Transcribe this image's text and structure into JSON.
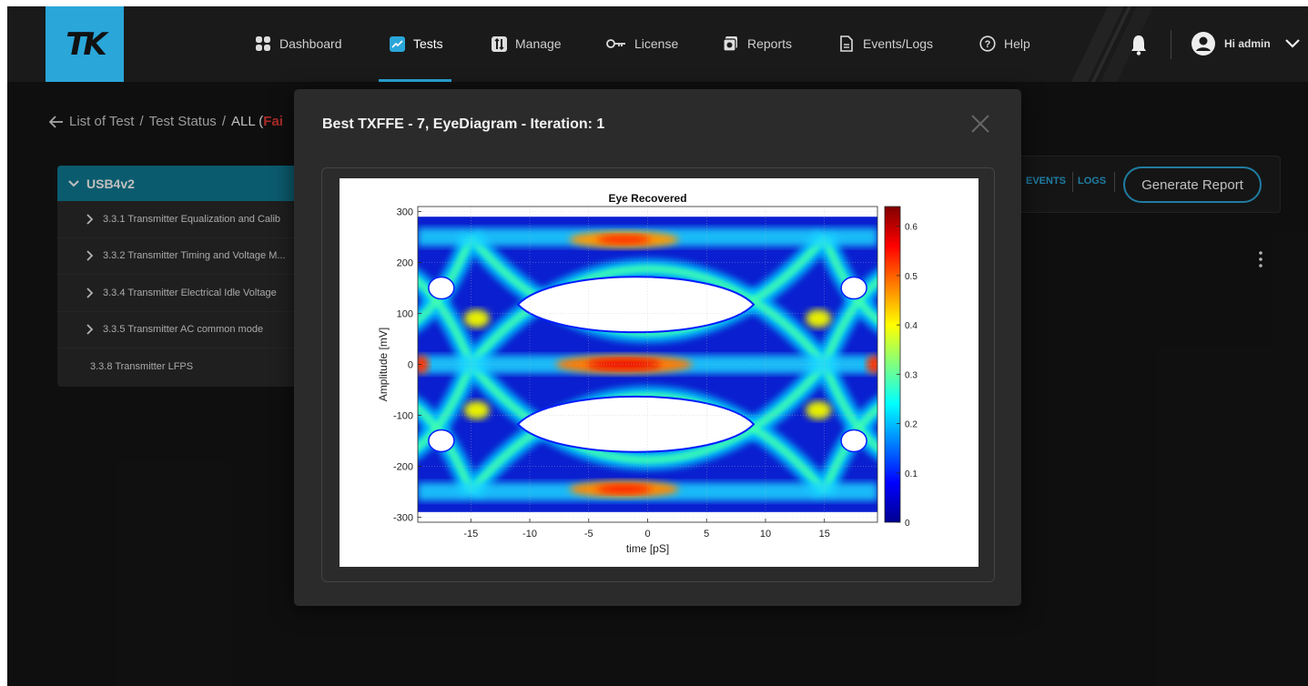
{
  "nav": {
    "logo_text": "TK",
    "items": [
      {
        "label": "Dashboard",
        "icon": "grid-icon"
      },
      {
        "label": "Tests",
        "icon": "chart-icon"
      },
      {
        "label": "Manage",
        "icon": "manage-icon"
      },
      {
        "label": "License",
        "icon": "key-icon"
      },
      {
        "label": "Reports",
        "icon": "reports-icon"
      },
      {
        "label": "Events/Logs",
        "icon": "document-icon"
      },
      {
        "label": "Help",
        "icon": "help-icon"
      }
    ],
    "active": "Tests",
    "user_label": "Hi admin"
  },
  "breadcrumb": {
    "part1": "List of Test",
    "sep1": "/",
    "part2": "Test Status",
    "sep2": "/",
    "part3": "ALL (",
    "status": "Fai"
  },
  "tree": {
    "root": "USB4v2",
    "items": [
      "3.3.1 Transmitter Equalization and Calib",
      "3.3.2 Transmitter Timing and Voltage M...",
      "3.3.4 Transmitter Electrical Idle Voltage",
      "3.3.5 Transmitter AC common mode"
    ],
    "leaf": "3.3.8 Transmitter LFPS"
  },
  "panel": {
    "events_label": "EVENTS",
    "logs_label": "LOGS",
    "generate_report_label": "Generate Report"
  },
  "modal": {
    "title": "Best TXFFE - 7, EyeDiagram - Iteration: 1"
  },
  "chart_data": {
    "type": "heatmap",
    "title": "Eye Recovered",
    "xlabel": "time [pS]",
    "ylabel": "Amplitude [mV]",
    "xlim": [
      -19.5,
      19.5
    ],
    "ylim": [
      -310,
      310
    ],
    "xticks": [
      -15,
      -10,
      -5,
      0,
      5,
      10,
      15
    ],
    "yticks": [
      -300,
      -200,
      -100,
      0,
      100,
      200,
      300
    ],
    "colorbar": {
      "min": 0,
      "max": 0.64,
      "ticks": [
        0,
        0.1,
        0.2,
        0.3,
        0.4,
        0.5,
        0.6
      ],
      "colormap": "jet"
    },
    "grid": true,
    "eye_levels_mV": [
      -250,
      0,
      250
    ],
    "eye_crossings_pS": [
      -15,
      15
    ]
  },
  "colors": {
    "accent": "#2aa6d9",
    "fail": "#e53935",
    "tree_header": "#0f7a93"
  }
}
